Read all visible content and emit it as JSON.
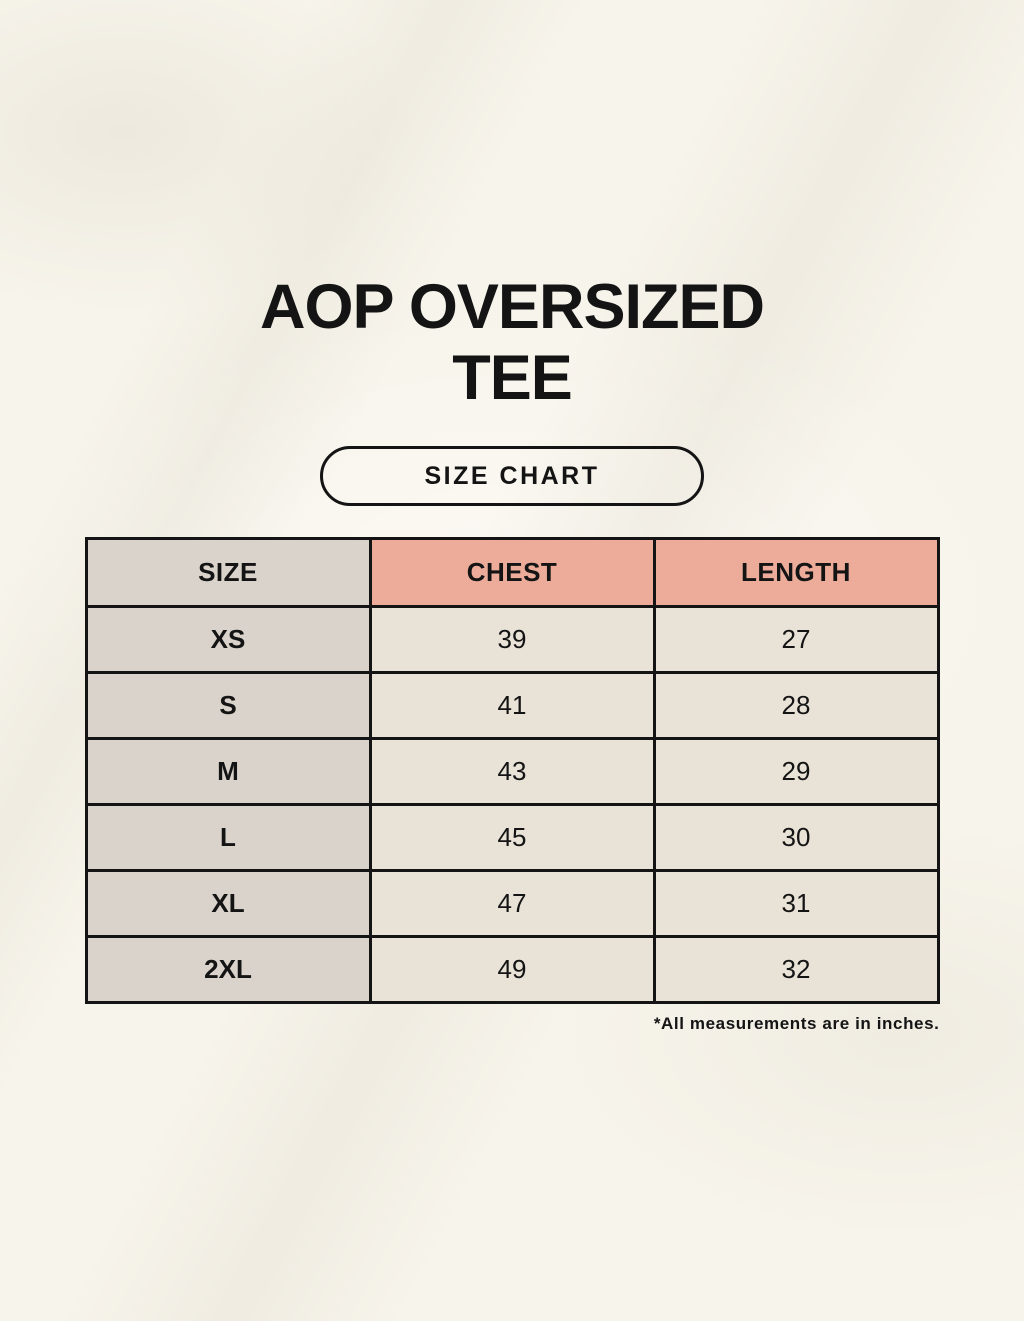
{
  "header": {
    "title": "AOP OVERSIZED TEE",
    "badge_label": "SIZE CHART"
  },
  "chart_data": {
    "type": "table",
    "title": "AOP OVERSIZED TEE",
    "columns": [
      "SIZE",
      "CHEST",
      "LENGTH"
    ],
    "rows": [
      {
        "size": "XS",
        "chest": "39",
        "length": "27"
      },
      {
        "size": "S",
        "chest": "41",
        "length": "28"
      },
      {
        "size": "M",
        "chest": "43",
        "length": "29"
      },
      {
        "size": "L",
        "chest": "45",
        "length": "30"
      },
      {
        "size": "XL",
        "chest": "47",
        "length": "31"
      },
      {
        "size": "2XL",
        "chest": "49",
        "length": "32"
      }
    ],
    "units": "inches"
  },
  "footnote": "*All measurements are in inches.",
  "colors": {
    "background": "#f7f4eb",
    "label_col_bg": "#d9d3cb",
    "accent_header_bg": "#ecac99",
    "value_cell_bg": "#e9e3d7",
    "border": "#141414",
    "text": "#141414"
  }
}
